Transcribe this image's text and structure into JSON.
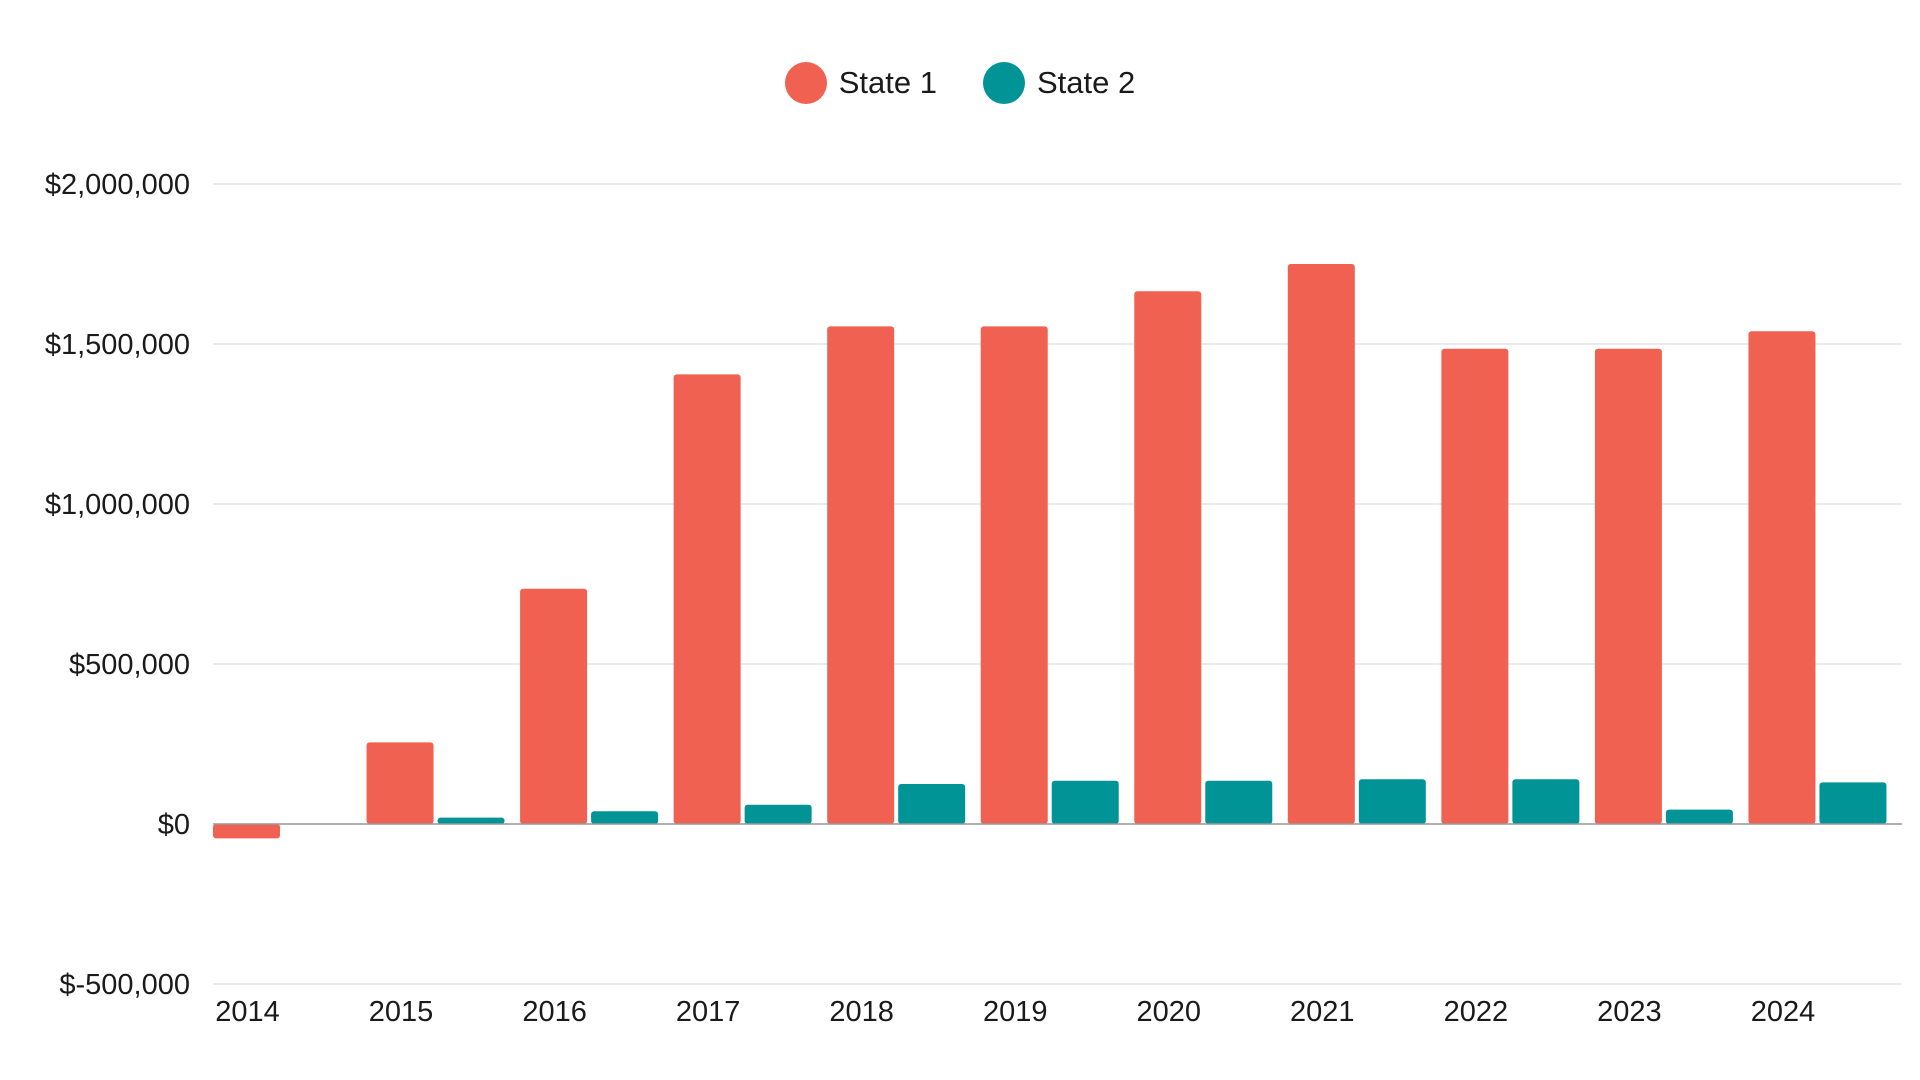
{
  "chart_data": {
    "type": "bar",
    "categories": [
      "2014",
      "2015",
      "2016",
      "2017",
      "2018",
      "2019",
      "2020",
      "2021",
      "2022",
      "2023",
      "2024"
    ],
    "series": [
      {
        "name": "State 1",
        "color": "#F06151",
        "values": [
          -45000,
          255000,
          735000,
          1405000,
          1555000,
          1555000,
          1665000,
          1750000,
          1485000,
          1485000,
          1540000
        ]
      },
      {
        "name": "State 2",
        "color": "#009496",
        "values": [
          0,
          20000,
          40000,
          60000,
          125000,
          135000,
          135000,
          140000,
          140000,
          45000,
          130000
        ]
      }
    ],
    "ylim": [
      -500000,
      2000000
    ],
    "yticks": [
      2000000,
      1500000,
      1000000,
      500000,
      0,
      -500000
    ],
    "ytick_labels": [
      "$2,000,000",
      "$1,500,000",
      "$1,000,000",
      "$500,000",
      "$0",
      "$-500,000"
    ],
    "grid": true,
    "legend_position": "top-center",
    "title": "",
    "xlabel": "",
    "ylabel": ""
  }
}
